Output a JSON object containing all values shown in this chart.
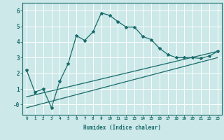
{
  "xlabel": "Humidex (Indice chaleur)",
  "bg_color": "#cce8e8",
  "grid_color": "#ffffff",
  "line_color": "#1a6b6b",
  "xlim": [
    -0.5,
    23.5
  ],
  "ylim": [
    -0.65,
    6.5
  ],
  "xticks": [
    0,
    1,
    2,
    3,
    4,
    5,
    6,
    7,
    8,
    9,
    10,
    11,
    12,
    13,
    14,
    15,
    16,
    17,
    18,
    19,
    20,
    21,
    22,
    23
  ],
  "yticks": [
    0,
    1,
    2,
    3,
    4,
    5,
    6
  ],
  "ytick_labels": [
    "-0",
    "1",
    "2",
    "3",
    "4",
    "5",
    "6"
  ],
  "curve1_x": [
    0,
    1,
    2,
    3,
    4,
    5,
    6,
    7,
    8,
    9,
    10,
    11,
    12,
    13,
    14,
    15,
    16,
    17,
    18,
    19,
    20,
    21,
    22,
    23
  ],
  "curve1_y": [
    2.2,
    0.8,
    1.0,
    -0.2,
    1.5,
    2.6,
    4.4,
    4.1,
    4.65,
    5.85,
    5.7,
    5.3,
    4.95,
    4.95,
    4.35,
    4.15,
    3.6,
    3.2,
    3.0,
    3.0,
    3.0,
    2.95,
    3.1,
    3.4
  ],
  "curve2_x": [
    0,
    23
  ],
  "curve2_y": [
    -0.2,
    3.0
  ],
  "curve3_x": [
    0,
    23
  ],
  "curve3_y": [
    0.5,
    3.4
  ]
}
